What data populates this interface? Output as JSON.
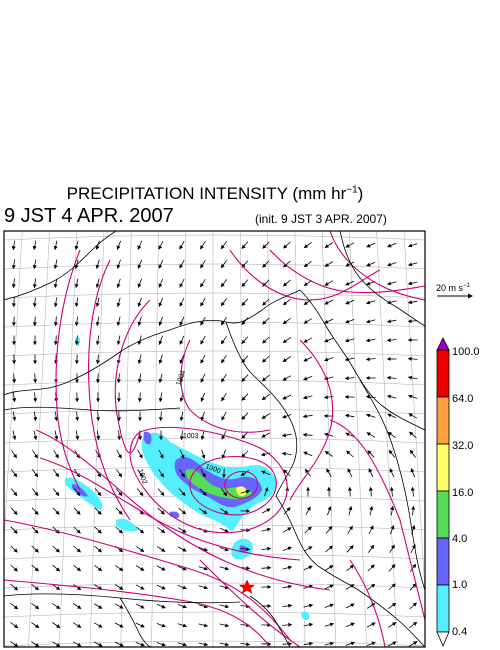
{
  "title": {
    "text": "PRECIPITATION INTENSITY (mm hr",
    "unit_exp": "−1",
    "close": ")"
  },
  "valid_time": "9 JST 4 APR. 2007",
  "init_time": "(init. 9 JST 3 APR. 2007)",
  "wind_reference": {
    "label": "20 m s",
    "exp": "−1"
  },
  "colorbar": {
    "ticks": [
      "100.0",
      "64.0",
      "32.0",
      "16.0",
      "4.0",
      "1.0",
      "0.4"
    ],
    "colors": [
      "#9900cc",
      "#ee0000",
      "#ffa040",
      "#ffff66",
      "#55dd55",
      "#6666ff",
      "#55eeff",
      "#ffffff"
    ]
  },
  "isobar_labels": [
    "1003",
    "1000",
    "1002",
    "1004"
  ],
  "marker": {
    "icon": "red-star-icon",
    "color": "#ff0000"
  },
  "colors": {
    "isobar": "#cc0077",
    "coast": "#000000",
    "grid": "#aaaaaa"
  }
}
